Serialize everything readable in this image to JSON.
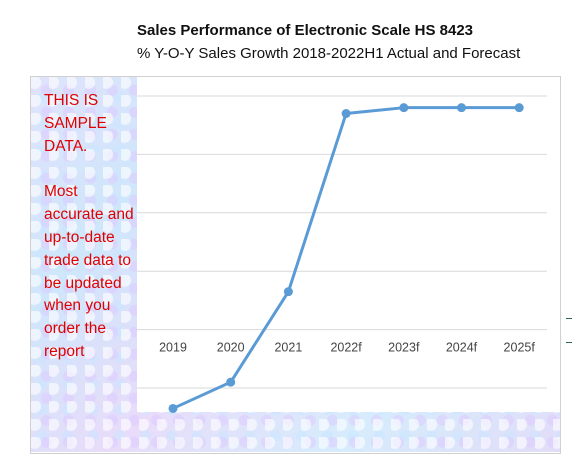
{
  "chart_data": {
    "type": "line",
    "title": "Sales Performance of Electronic Scale HS 8423",
    "subtitle": "%  Y-O-Y Sales Growth 2018-2022H1 Actual and Forecast",
    "categories": [
      "2019",
      "2020",
      "2021",
      "2022f",
      "2023f",
      "2024f",
      "2025f"
    ],
    "series": [
      {
        "values": [
          -2.7,
          -1.8,
          1.3,
          7.4,
          7.6,
          7.6,
          7.6
        ],
        "color": "#5b9bd5"
      }
    ],
    "ylim": [
      -3,
      9
    ],
    "gridlines": [
      -2,
      0,
      2,
      4,
      6,
      8
    ],
    "grid": true,
    "legend": "none"
  },
  "watermark": {
    "line1": "THIS IS SAMPLE DATA.",
    "line2": "Most accurate and up-to-date trade data to be updated when you order the report",
    "color": "#e00000"
  }
}
